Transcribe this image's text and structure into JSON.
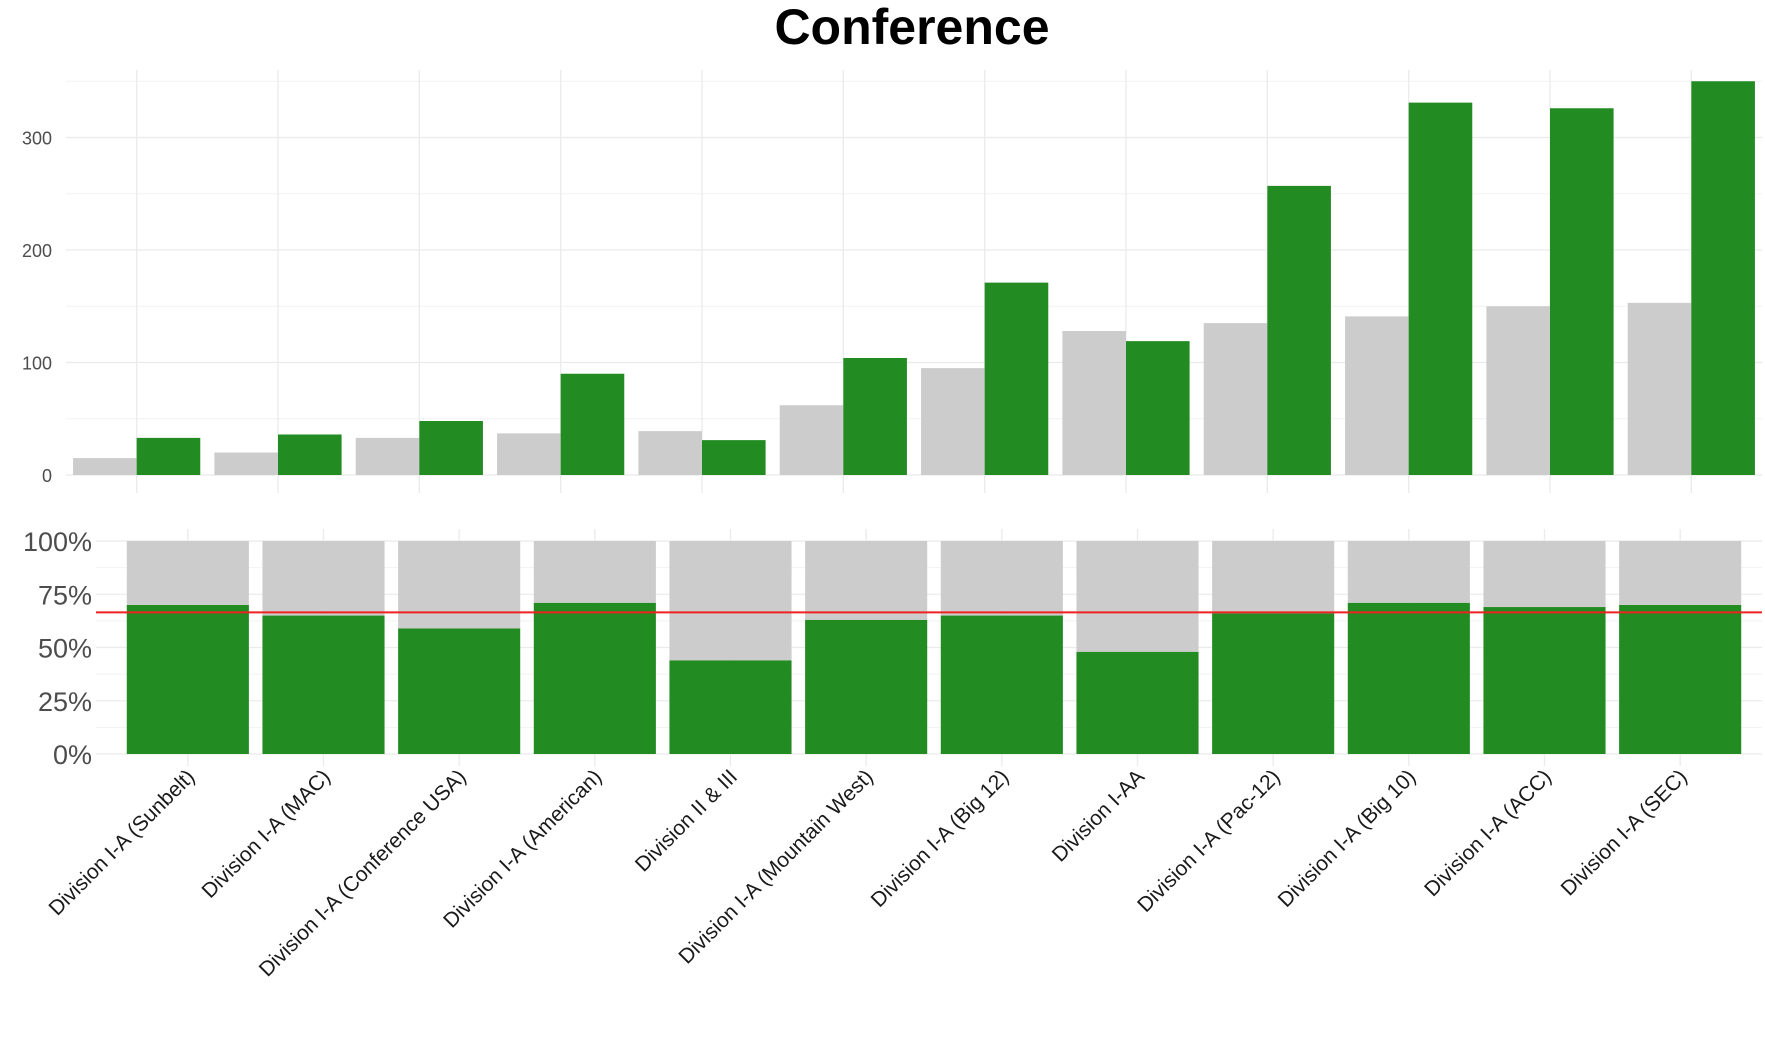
{
  "chart_data": [
    {
      "type": "bar",
      "title": "Conference",
      "xlabel": "",
      "ylabel": "",
      "categories": [
        "Division I-A (Sunbelt)",
        "Division I-A (MAC)",
        "Division I-A (Conference USA)",
        "Division I-A (American)",
        "Division II & III",
        "Division I-A (Mountain West)",
        "Division I-A (Big 12)",
        "Division I-AA",
        "Division I-A (Pac-12)",
        "Division I-A (Big 10)",
        "Division I-A (ACC)",
        "Division I-A (SEC)"
      ],
      "series": [
        {
          "color": "#cccccc",
          "values": [
            15,
            20,
            33,
            37,
            39,
            62,
            95,
            128,
            135,
            141,
            150,
            153
          ]
        },
        {
          "color": "#228b22",
          "values": [
            33,
            36,
            48,
            90,
            31,
            104,
            171,
            119,
            257,
            331,
            326,
            350
          ]
        }
      ],
      "ylim": [
        0,
        360
      ],
      "yticks": [
        0,
        100,
        200,
        300
      ],
      "grid": true,
      "legend": "none"
    },
    {
      "type": "bar",
      "stacked": true,
      "percent": true,
      "categories": [
        "Division I-A (Sunbelt)",
        "Division I-A (MAC)",
        "Division I-A (Conference USA)",
        "Division I-A (American)",
        "Division II & III",
        "Division I-A (Mountain West)",
        "Division I-A (Big 12)",
        "Division I-AA",
        "Division I-A (Pac-12)",
        "Division I-A (Big 10)",
        "Division I-A (ACC)",
        "Division I-A (SEC)"
      ],
      "series": [
        {
          "color": "#228b22",
          "values": [
            70,
            65,
            59,
            71,
            44,
            63,
            65,
            48,
            66,
            71,
            69,
            70
          ]
        },
        {
          "color": "#cccccc",
          "values": [
            30,
            35,
            41,
            29,
            56,
            37,
            35,
            52,
            34,
            29,
            31,
            30
          ]
        }
      ],
      "ylim": [
        0,
        100
      ],
      "yticks": [
        "0%",
        "25%",
        "50%",
        "75%",
        "100%"
      ],
      "reference_line": {
        "value": 66.5,
        "color": "#ee2222"
      },
      "grid": true,
      "legend": "none"
    }
  ]
}
